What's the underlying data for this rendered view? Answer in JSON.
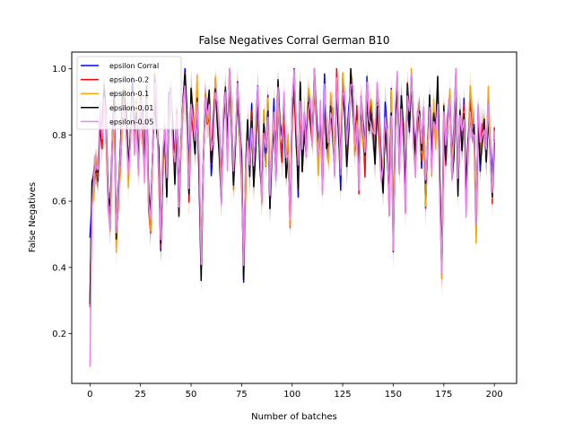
{
  "chart_data": {
    "type": "line",
    "title": "False Negatives Corral German B10",
    "xlabel": "Number of batches",
    "ylabel": "False Negatives",
    "xlim": [
      -9,
      211
    ],
    "ylim": [
      0.05,
      1.05
    ],
    "xticks": [
      0,
      25,
      50,
      75,
      100,
      125,
      150,
      175,
      200
    ],
    "yticks": [
      0.2,
      0.4,
      0.6,
      0.8,
      1.0
    ],
    "ytick_labels": [
      "0.2",
      "0.4",
      "0.6",
      "0.8",
      "1.0"
    ],
    "grid": false,
    "legend_position": "top-left",
    "x_range": [
      0,
      200
    ],
    "series": [
      {
        "name": "epsilon Corral",
        "color": "#0000ff",
        "start": 0.49,
        "seed": 11
      },
      {
        "name": "epsilon-0.2",
        "color": "#ff0000",
        "start": 0.28,
        "seed": 23
      },
      {
        "name": "epsilon-0.1",
        "color": "#ffa500",
        "start": 0.3,
        "seed": 37
      },
      {
        "name": "epsilon-0.01",
        "color": "#000000",
        "start": 0.29,
        "seed": 41
      },
      {
        "name": "epsilon-0.05",
        "color": "#ee82ee",
        "start": 0.1,
        "seed": 53
      }
    ],
    "base_values": [
      0.12,
      0.62,
      0.66,
      0.74,
      0.7,
      0.86,
      0.8,
      0.95,
      0.82,
      0.6,
      0.55,
      0.74,
      0.9,
      0.48,
      0.62,
      0.72,
      0.88,
      0.93,
      0.85,
      0.67,
      0.82,
      0.95,
      0.78,
      0.88,
      0.72,
      0.92,
      0.84,
      0.7,
      0.9,
      0.62,
      0.55,
      0.78,
      0.94,
      0.85,
      0.72,
      0.48,
      0.7,
      0.82,
      0.66,
      0.88,
      0.95,
      0.8,
      0.7,
      0.86,
      0.6,
      0.75,
      0.92,
      0.98,
      0.82,
      0.64,
      0.9,
      0.86,
      0.76,
      0.94,
      0.7,
      0.4,
      0.7,
      0.88,
      0.82,
      0.9,
      0.72,
      0.82,
      0.96,
      0.88,
      0.78,
      0.62,
      0.84,
      0.92,
      0.74,
      0.98,
      0.86,
      0.68,
      0.8,
      0.92,
      0.84,
      0.7,
      0.38,
      0.66,
      0.8,
      0.72,
      0.86,
      0.66,
      0.8,
      0.9,
      0.74,
      0.64,
      0.84,
      0.74,
      0.88,
      0.62,
      0.78,
      0.86,
      0.7,
      0.92,
      0.82,
      0.76,
      0.88,
      0.7,
      0.78,
      0.55,
      0.86,
      0.98,
      0.8,
      0.66,
      0.94,
      0.72,
      0.84,
      0.78,
      0.9,
      0.86,
      0.8,
      0.98,
      0.84,
      0.72,
      0.88,
      0.66,
      0.94,
      0.8,
      0.74,
      0.9,
      0.84,
      0.7,
      0.96,
      0.82,
      0.68,
      0.94,
      0.88,
      0.74,
      0.84,
      0.96,
      0.9,
      0.78,
      0.86,
      0.66,
      0.88,
      0.8,
      0.72,
      0.94,
      0.84,
      0.88,
      0.8,
      0.76,
      0.92,
      0.84,
      0.7,
      0.66,
      0.86,
      0.78,
      0.6,
      0.9,
      0.48,
      0.86,
      0.96,
      0.7,
      0.88,
      0.8,
      0.6,
      0.92,
      0.84,
      0.98,
      0.8,
      0.72,
      0.86,
      0.9,
      0.74,
      0.84,
      0.62,
      0.78,
      0.88,
      0.72,
      0.86,
      0.8,
      0.94,
      0.66,
      0.4,
      0.86,
      0.74,
      0.84,
      0.92,
      0.7,
      0.78,
      0.98,
      0.66,
      0.84,
      0.8,
      0.88,
      0.6,
      0.76,
      0.9,
      0.84,
      0.8,
      0.5,
      0.86,
      0.74,
      0.8,
      0.84,
      0.72,
      0.9,
      0.76,
      0.64,
      0.8,
      0.96,
      0.9
    ]
  }
}
